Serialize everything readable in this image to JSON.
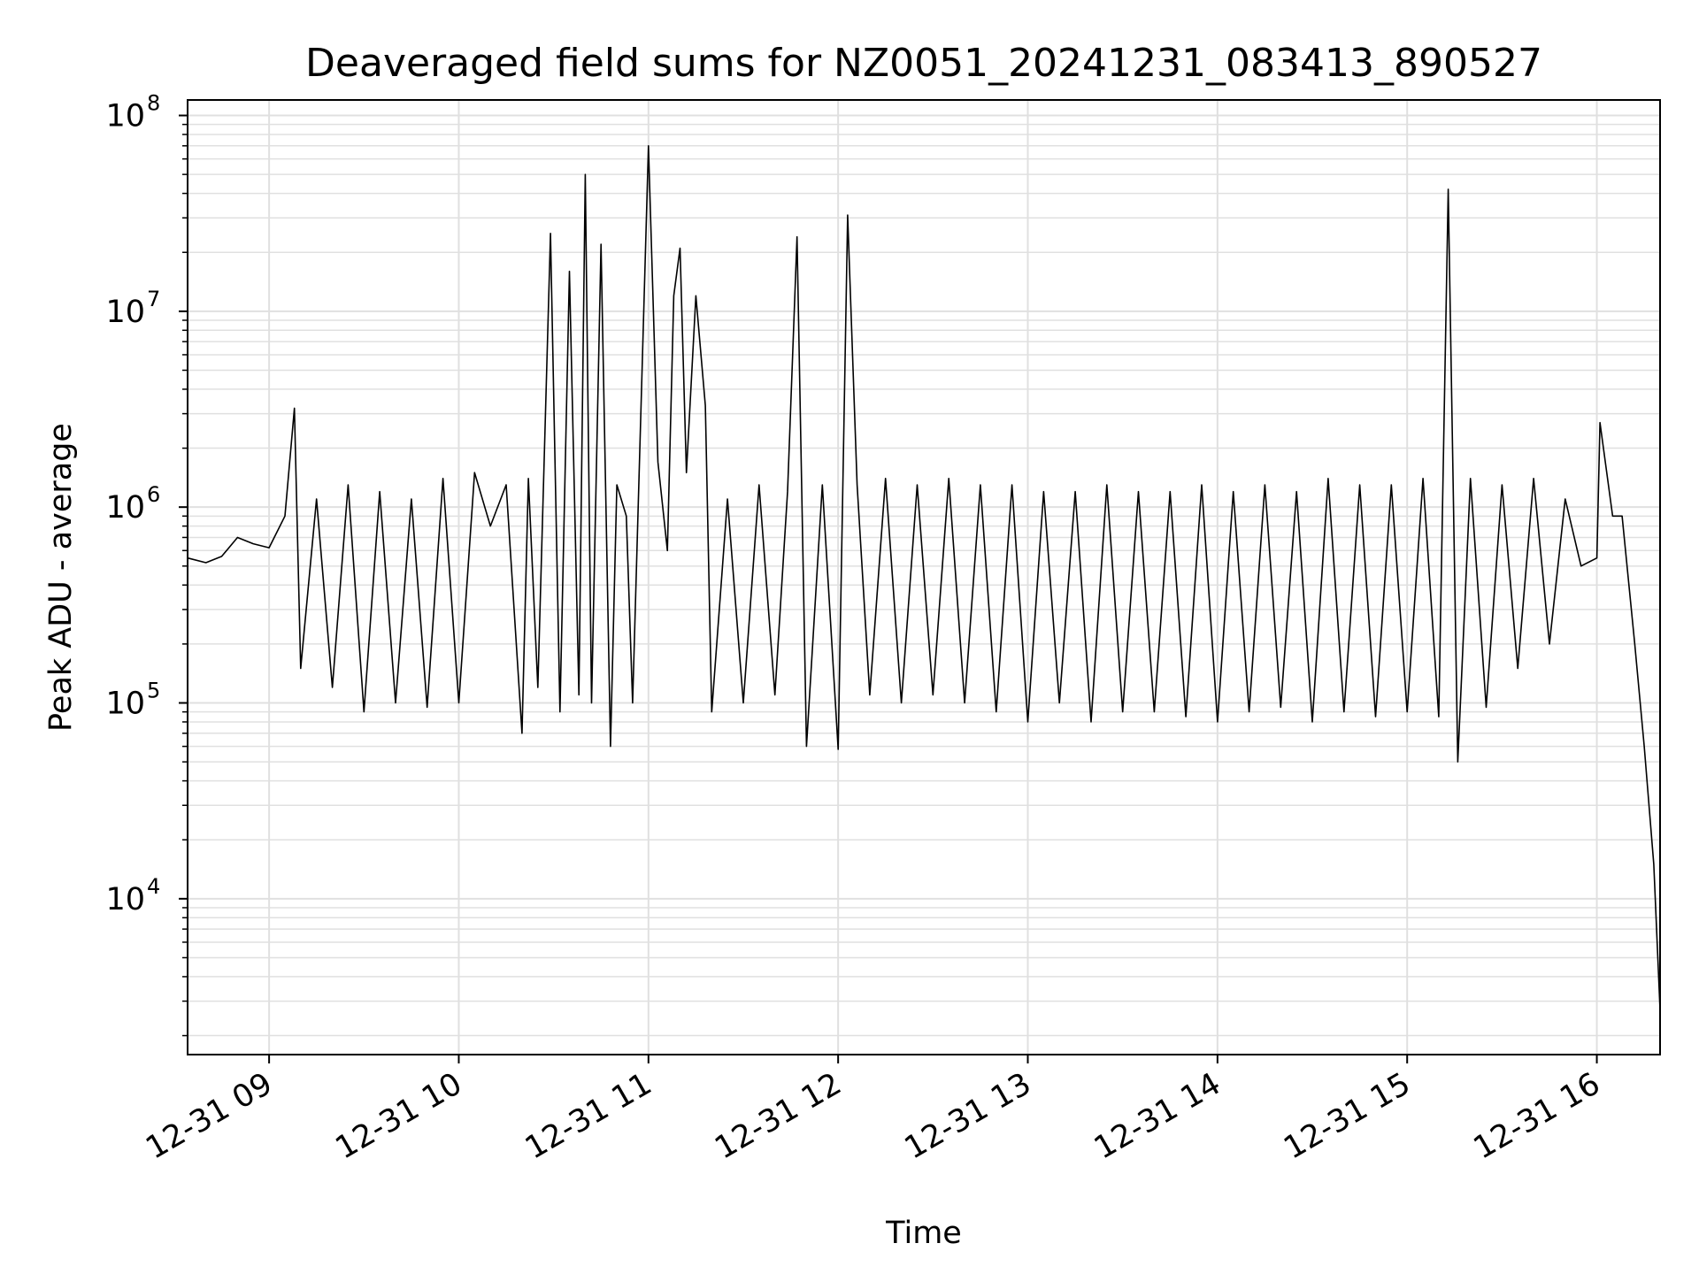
{
  "chart_data": {
    "type": "line",
    "title": "Deaveraged field sums for NZ0051_20241231_083413_890527",
    "xlabel": "Time",
    "ylabel": "Peak ADU - average",
    "xscale": "time",
    "yscale": "log",
    "xlim": [
      "2024-12-31T08:34:13",
      "2024-12-31T16:20:00"
    ],
    "ylim": [
      1600,
      120000000
    ],
    "grid": true,
    "grid_minor_y": true,
    "legend": "none",
    "line_color": "#000000",
    "grid_color": "#e0e0e0",
    "x_ticks": [
      {
        "label": "12-31 09",
        "value": "2024-12-31T09:00:00"
      },
      {
        "label": "12-31 10",
        "value": "2024-12-31T10:00:00"
      },
      {
        "label": "12-31 11",
        "value": "2024-12-31T11:00:00"
      },
      {
        "label": "12-31 12",
        "value": "2024-12-31T12:00:00"
      },
      {
        "label": "12-31 13",
        "value": "2024-12-31T13:00:00"
      },
      {
        "label": "12-31 14",
        "value": "2024-12-31T14:00:00"
      },
      {
        "label": "12-31 15",
        "value": "2024-12-31T15:00:00"
      },
      {
        "label": "12-31 16",
        "value": "2024-12-31T16:00:00"
      }
    ],
    "y_ticks": [
      {
        "base": "10",
        "exp": "4",
        "value": 10000
      },
      {
        "base": "10",
        "exp": "5",
        "value": 100000
      },
      {
        "base": "10",
        "exp": "6",
        "value": 1000000
      },
      {
        "base": "10",
        "exp": "7",
        "value": 10000000
      },
      {
        "base": "10",
        "exp": "8",
        "value": 100000000
      }
    ],
    "series": [
      {
        "x": [
          "2024-12-31T08:34:13",
          "2024-12-31T08:40:00",
          "2024-12-31T08:45:00",
          "2024-12-31T08:50:00",
          "2024-12-31T08:55:00",
          "2024-12-31T09:00:00",
          "2024-12-31T09:05:00",
          "2024-12-31T09:08:00",
          "2024-12-31T09:10:00",
          "2024-12-31T09:15:00",
          "2024-12-31T09:20:00",
          "2024-12-31T09:25:00",
          "2024-12-31T09:30:00",
          "2024-12-31T09:35:00",
          "2024-12-31T09:40:00",
          "2024-12-31T09:45:00",
          "2024-12-31T09:50:00",
          "2024-12-31T09:55:00",
          "2024-12-31T10:00:00",
          "2024-12-31T10:05:00",
          "2024-12-31T10:10:00",
          "2024-12-31T10:15:00",
          "2024-12-31T10:20:00",
          "2024-12-31T10:22:00",
          "2024-12-31T10:25:00",
          "2024-12-31T10:29:00",
          "2024-12-31T10:32:00",
          "2024-12-31T10:35:00",
          "2024-12-31T10:38:00",
          "2024-12-31T10:40:00",
          "2024-12-31T10:42:00",
          "2024-12-31T10:45:00",
          "2024-12-31T10:48:00",
          "2024-12-31T10:50:00",
          "2024-12-31T10:53:00",
          "2024-12-31T10:55:00",
          "2024-12-31T11:00:00",
          "2024-12-31T11:03:00",
          "2024-12-31T11:06:00",
          "2024-12-31T11:08:00",
          "2024-12-31T11:10:00",
          "2024-12-31T11:12:00",
          "2024-12-31T11:15:00",
          "2024-12-31T11:18:00",
          "2024-12-31T11:20:00",
          "2024-12-31T11:25:00",
          "2024-12-31T11:30:00",
          "2024-12-31T11:35:00",
          "2024-12-31T11:40:00",
          "2024-12-31T11:44:00",
          "2024-12-31T11:47:00",
          "2024-12-31T11:50:00",
          "2024-12-31T11:55:00",
          "2024-12-31T12:00:00",
          "2024-12-31T12:03:00",
          "2024-12-31T12:06:00",
          "2024-12-31T12:10:00",
          "2024-12-31T12:15:00",
          "2024-12-31T12:20:00",
          "2024-12-31T12:25:00",
          "2024-12-31T12:30:00",
          "2024-12-31T12:35:00",
          "2024-12-31T12:40:00",
          "2024-12-31T12:45:00",
          "2024-12-31T12:50:00",
          "2024-12-31T12:55:00",
          "2024-12-31T13:00:00",
          "2024-12-31T13:05:00",
          "2024-12-31T13:10:00",
          "2024-12-31T13:15:00",
          "2024-12-31T13:20:00",
          "2024-12-31T13:25:00",
          "2024-12-31T13:30:00",
          "2024-12-31T13:35:00",
          "2024-12-31T13:40:00",
          "2024-12-31T13:45:00",
          "2024-12-31T13:50:00",
          "2024-12-31T13:55:00",
          "2024-12-31T14:00:00",
          "2024-12-31T14:05:00",
          "2024-12-31T14:10:00",
          "2024-12-31T14:15:00",
          "2024-12-31T14:20:00",
          "2024-12-31T14:25:00",
          "2024-12-31T14:30:00",
          "2024-12-31T14:35:00",
          "2024-12-31T14:40:00",
          "2024-12-31T14:45:00",
          "2024-12-31T14:50:00",
          "2024-12-31T14:55:00",
          "2024-12-31T15:00:00",
          "2024-12-31T15:05:00",
          "2024-12-31T15:10:00",
          "2024-12-31T15:13:00",
          "2024-12-31T15:16:00",
          "2024-12-31T15:20:00",
          "2024-12-31T15:25:00",
          "2024-12-31T15:30:00",
          "2024-12-31T15:35:00",
          "2024-12-31T15:40:00",
          "2024-12-31T15:45:00",
          "2024-12-31T15:50:00",
          "2024-12-31T15:55:00",
          "2024-12-31T16:00:00",
          "2024-12-31T16:01:00",
          "2024-12-31T16:05:00",
          "2024-12-31T16:08:00",
          "2024-12-31T16:12:00",
          "2024-12-31T16:15:00",
          "2024-12-31T16:18:00",
          "2024-12-31T16:20:00"
        ],
        "y": [
          550000,
          520000,
          560000,
          700000,
          650000,
          620000,
          900000,
          3200000,
          150000,
          1100000,
          120000,
          1300000,
          90000,
          1200000,
          100000,
          1100000,
          95000,
          1400000,
          100000,
          1500000,
          800000,
          1300000,
          70000,
          1400000,
          120000,
          25000000,
          90000,
          16000000,
          110000,
          50000000,
          100000,
          22000000,
          60000,
          1300000,
          900000,
          100000,
          70000000,
          1700000,
          600000,
          12000000,
          21000000,
          1500000,
          12000000,
          3300000,
          90000,
          1100000,
          100000,
          1300000,
          110000,
          1200000,
          24000000,
          60000,
          1300000,
          58000,
          31000000,
          1300000,
          110000,
          1400000,
          100000,
          1300000,
          110000,
          1400000,
          100000,
          1300000,
          90000,
          1300000,
          80000,
          1200000,
          100000,
          1200000,
          80000,
          1300000,
          90000,
          1200000,
          90000,
          1200000,
          85000,
          1300000,
          80000,
          1200000,
          90000,
          1300000,
          95000,
          1200000,
          80000,
          1400000,
          90000,
          1300000,
          85000,
          1300000,
          90000,
          1400000,
          85000,
          42000000,
          50000,
          1400000,
          95000,
          1300000,
          150000,
          1400000,
          200000,
          1100000,
          500000,
          550000,
          2700000,
          900000,
          900000,
          200000,
          60000,
          15000,
          2700
        ]
      }
    ]
  }
}
